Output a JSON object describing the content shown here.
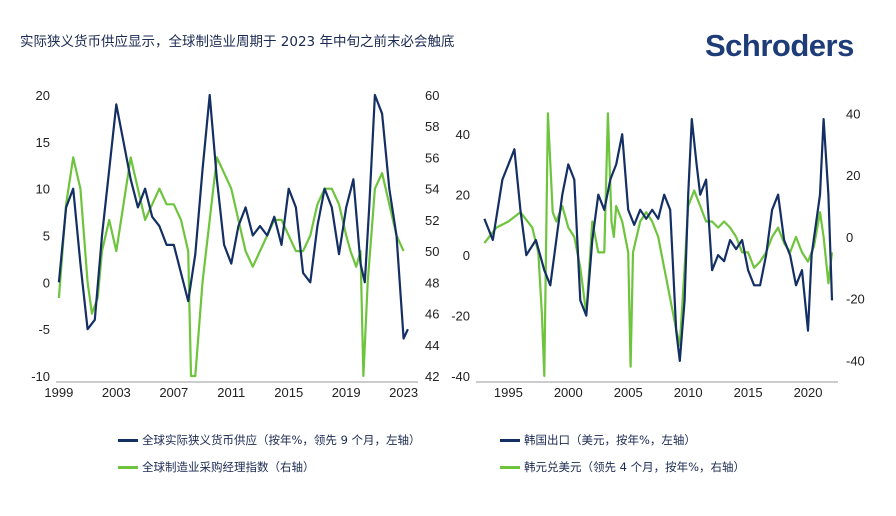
{
  "title": "实际狭义货币供应显示，全球制造业周期于 2023 年中旬之前末必会触底",
  "brand": "Schroders",
  "colors": {
    "navy": "#142f63",
    "green": "#6ec43d",
    "axis": "#999999"
  },
  "legend": {
    "left_navy": "全球实际狭义货币供应（按年%，领先 9 个月，左轴）",
    "left_green": "全球制造业采购经理指数（右轴）",
    "right_navy": "韩国出口（美元，按年%，左轴）",
    "right_green": "韩元兑美元（领先 4 个月，按年%，右轴）"
  },
  "chart_data": [
    {
      "type": "line",
      "left_axis": {
        "ylim": [
          -10,
          20
        ],
        "ticks": [
          "20",
          "15",
          "10",
          "5",
          "0",
          "-5",
          "-10"
        ],
        "tick_values": [
          20,
          15,
          10,
          5,
          0,
          -5,
          -10
        ]
      },
      "right_axis": {
        "ylim": [
          42,
          60
        ],
        "ticks": [
          "60",
          "58",
          "56",
          "54",
          "52",
          "50",
          "48",
          "46",
          "44",
          "42"
        ],
        "tick_values": [
          60,
          58,
          56,
          54,
          52,
          50,
          48,
          46,
          44,
          42
        ]
      },
      "x_axis": {
        "xlim": [
          1998.8,
          2024.0
        ],
        "ticks": [
          "1999",
          "2003",
          "2007",
          "2011",
          "2015",
          "2019",
          "2023"
        ],
        "tick_values": [
          1999,
          2003,
          2007,
          2011,
          2015,
          2019,
          2023
        ]
      },
      "series": [
        {
          "name": "全球实际狭义货币供应（按年%，领先 9 个月，左轴）",
          "axis": "left",
          "color": "#142f63",
          "x": [
            1999,
            1999.5,
            2000,
            2000.5,
            2001,
            2001.5,
            2002,
            2002.5,
            2003,
            2003.5,
            2004,
            2004.5,
            2005,
            2005.5,
            2006,
            2006.5,
            2007,
            2007.5,
            2008,
            2008.5,
            2009,
            2009.5,
            2010,
            2010.5,
            2011,
            2011.5,
            2012,
            2012.5,
            2013,
            2013.5,
            2014,
            2014.5,
            2015,
            2015.5,
            2016,
            2016.5,
            2017,
            2017.5,
            2018,
            2018.5,
            2019,
            2019.5,
            2020,
            2020.3,
            2020.6,
            2021,
            2021.5,
            2022,
            2022.5,
            2023,
            2023.3
          ],
          "y": [
            0,
            8,
            10,
            2,
            -5,
            -4,
            5,
            12,
            19,
            15,
            11,
            8,
            10,
            7,
            6,
            4,
            4,
            1,
            -2,
            3,
            12,
            20,
            11,
            4,
            2,
            6,
            8,
            5,
            6,
            5,
            7,
            4,
            10,
            8,
            1,
            0,
            6,
            10,
            8,
            3,
            8,
            11,
            2,
            0,
            8,
            20,
            18,
            10,
            5,
            -6,
            -5
          ]
        },
        {
          "name": "全球制造业采购经理指数（右轴）",
          "axis": "right",
          "color": "#6ec43d",
          "x": [
            1999,
            1999.5,
            2000,
            2000.5,
            2001,
            2001.3,
            2001.7,
            2002,
            2002.5,
            2003,
            2003.5,
            2004,
            2004.5,
            2005,
            2005.5,
            2006,
            2006.5,
            2007,
            2007.5,
            2008,
            2008.2,
            2008.5,
            2009,
            2009.5,
            2010,
            2010.5,
            2011,
            2011.5,
            2012,
            2012.5,
            2013,
            2013.5,
            2014,
            2014.5,
            2015,
            2015.5,
            2016,
            2016.5,
            2017,
            2017.5,
            2018,
            2018.5,
            2019,
            2019.3,
            2019.7,
            2020,
            2020.2,
            2020.5,
            2021,
            2021.5,
            2022,
            2022.5,
            2023
          ],
          "y": [
            47,
            53,
            56,
            54,
            48,
            46,
            47,
            50,
            52,
            50,
            53,
            56,
            54,
            52,
            53,
            54,
            53,
            53,
            52,
            50,
            42,
            42,
            48,
            52,
            56,
            55,
            54,
            52,
            50,
            49,
            50,
            51,
            52,
            52,
            51,
            50,
            50,
            51,
            53,
            54,
            54,
            53,
            51,
            50,
            49,
            50,
            42,
            48,
            54,
            55,
            53,
            51,
            50
          ]
        }
      ]
    },
    {
      "type": "line",
      "left_axis": {
        "ylim": [
          -40,
          50
        ],
        "ticks": [
          "40",
          "20",
          "0",
          "-20",
          "-40"
        ],
        "tick_values": [
          40,
          20,
          0,
          -20,
          -40
        ]
      },
      "right_axis": {
        "ylim": [
          -45,
          43
        ],
        "ticks": [
          "40",
          "20",
          "0",
          "-20",
          "-40"
        ],
        "tick_values": [
          40,
          20,
          0,
          -20,
          -40
        ]
      },
      "x_axis": {
        "xlim": [
          1992.3,
          2022.5
        ],
        "ticks": [
          "1995",
          "2000",
          "2005",
          "2010",
          "2015",
          "2020"
        ],
        "tick_values": [
          1995,
          2000,
          2005,
          2010,
          2015,
          2020
        ]
      },
      "series": [
        {
          "name": "韩国出口（美元，按年%，左轴）",
          "axis": "left",
          "color": "#142f63",
          "x": [
            1993,
            1993.7,
            1994.5,
            1995.5,
            1996,
            1996.5,
            1997.3,
            1998,
            1998.5,
            1999,
            1999.5,
            2000,
            2000.5,
            2001,
            2001.5,
            2002,
            2002.5,
            2003,
            2003.5,
            2004,
            2004.5,
            2005,
            2005.5,
            2006,
            2006.5,
            2007,
            2007.5,
            2008,
            2008.5,
            2009,
            2009.3,
            2009.7,
            2010,
            2010.3,
            2010.7,
            2011,
            2011.5,
            2012,
            2012.5,
            2013,
            2013.5,
            2014,
            2014.5,
            2015,
            2015.5,
            2016,
            2016.5,
            2017,
            2017.5,
            2018,
            2018.5,
            2019,
            2019.5,
            2020,
            2020.3,
            2021,
            2021.3,
            2021.7,
            2022
          ],
          "y": [
            12,
            5,
            25,
            35,
            15,
            0,
            5,
            -5,
            -10,
            5,
            20,
            30,
            25,
            -15,
            -20,
            5,
            20,
            15,
            25,
            30,
            40,
            15,
            10,
            15,
            12,
            15,
            12,
            20,
            15,
            -25,
            -35,
            -15,
            20,
            45,
            30,
            20,
            25,
            -5,
            0,
            -2,
            5,
            2,
            5,
            -5,
            -10,
            -10,
            0,
            15,
            20,
            5,
            0,
            -10,
            -5,
            -25,
            0,
            20,
            45,
            20,
            -15
          ]
        },
        {
          "name": "韩元兑美元（领先 4 个月，按年%，右轴）",
          "axis": "right",
          "color": "#6ec43d",
          "x": [
            1993,
            1994,
            1995,
            1996,
            1997,
            1997.5,
            1997.8,
            1998,
            1998.3,
            1998.7,
            1999,
            1999.5,
            2000,
            2000.5,
            2001,
            2001.5,
            2002,
            2002.5,
            2003,
            2003.3,
            2003.6,
            2003.8,
            2004,
            2004.5,
            2005,
            2005.2,
            2005.4,
            2006,
            2006.5,
            2007,
            2007.5,
            2008,
            2008.5,
            2009,
            2009.3,
            2009.7,
            2010,
            2010.5,
            2011,
            2011.5,
            2012,
            2012.5,
            2013,
            2013.5,
            2014,
            2014.5,
            2015,
            2015.5,
            2016,
            2016.5,
            2017,
            2017.5,
            2018,
            2018.5,
            2019,
            2019.5,
            2020,
            2020.5,
            2021,
            2021.3,
            2021.7,
            2022
          ],
          "y": [
            -2,
            3,
            5,
            8,
            3,
            -5,
            -25,
            -45,
            40,
            8,
            5,
            10,
            3,
            0,
            -10,
            -25,
            5,
            -5,
            -5,
            40,
            5,
            0,
            10,
            5,
            -5,
            -42,
            -5,
            5,
            8,
            5,
            0,
            -10,
            -20,
            -30,
            -35,
            -10,
            10,
            15,
            10,
            5,
            5,
            3,
            5,
            3,
            0,
            -5,
            -5,
            -10,
            -8,
            -5,
            0,
            3,
            -2,
            -5,
            0,
            -5,
            -8,
            -3,
            8,
            0,
            -15,
            -5
          ]
        }
      ]
    }
  ]
}
